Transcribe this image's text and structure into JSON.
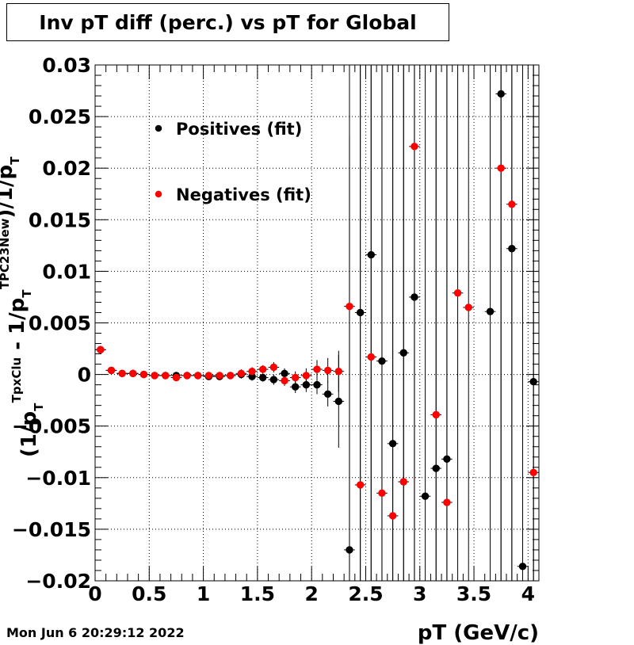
{
  "title": "Inv pT diff (perc.) vs pT for Global",
  "timestamp": "Mon Jun  6 20:29:12 2022",
  "chart_data": {
    "type": "scatter",
    "xlabel": "pT (GeV/c)",
    "ylabel_parts": [
      "(1/p",
      "T",
      "TpxClu",
      " - 1/p",
      "T",
      "TPC23New",
      ")/1/p",
      "T",
      "TPC23New"
    ],
    "xlim": [
      0,
      4.1
    ],
    "ylim": [
      -0.02,
      0.03
    ],
    "grid": true,
    "legend_placement": "top-left",
    "x_ticks": [
      0,
      0.5,
      1,
      1.5,
      2,
      2.5,
      3,
      3.5,
      4
    ],
    "x_tick_labels": [
      "0",
      "0.5",
      "1",
      "1.5",
      "2",
      "2.5",
      "3",
      "3.5",
      "4"
    ],
    "y_ticks": [
      -0.02,
      -0.015,
      -0.01,
      -0.005,
      0,
      0.005,
      0.01,
      0.015,
      0.02,
      0.025,
      0.03
    ],
    "y_tick_labels": [
      "−0.02",
      "−0.015",
      "−0.01",
      "−0.005",
      "0",
      "0.005",
      "0.01",
      "0.015",
      "0.02",
      "0.025",
      "0.03"
    ],
    "series": [
      {
        "name": "Positives (fit)",
        "color": "#000000",
        "points": [
          {
            "x": 0.05,
            "y": 0.0024,
            "e": 0.0002
          },
          {
            "x": 0.15,
            "y": 0.0004,
            "e": 0.0002
          },
          {
            "x": 0.25,
            "y": 0.0001,
            "e": 0.0002
          },
          {
            "x": 0.35,
            "y": 0.0001,
            "e": 0.0002
          },
          {
            "x": 0.45,
            "y": 0.0,
            "e": 0.0002
          },
          {
            "x": 0.55,
            "y": -0.0001,
            "e": 0.0002
          },
          {
            "x": 0.65,
            "y": -0.0001,
            "e": 0.0002
          },
          {
            "x": 0.75,
            "y": -0.0001,
            "e": 0.0002
          },
          {
            "x": 0.85,
            "y": -0.0001,
            "e": 0.0002
          },
          {
            "x": 0.95,
            "y": -0.0001,
            "e": 0.0002
          },
          {
            "x": 1.05,
            "y": -0.0002,
            "e": 0.0003
          },
          {
            "x": 1.15,
            "y": -0.0002,
            "e": 0.0003
          },
          {
            "x": 1.25,
            "y": -0.0001,
            "e": 0.0003
          },
          {
            "x": 1.35,
            "y": 0.0,
            "e": 0.0004
          },
          {
            "x": 1.45,
            "y": -0.0002,
            "e": 0.0004
          },
          {
            "x": 1.55,
            "y": -0.0003,
            "e": 0.0004
          },
          {
            "x": 1.65,
            "y": -0.0005,
            "e": 0.0005
          },
          {
            "x": 1.75,
            "y": 0.0001,
            "e": 0.0005
          },
          {
            "x": 1.85,
            "y": -0.0012,
            "e": 0.0006
          },
          {
            "x": 1.95,
            "y": -0.001,
            "e": 0.0007
          },
          {
            "x": 2.05,
            "y": -0.001,
            "e": 0.0009
          },
          {
            "x": 2.15,
            "y": -0.0019,
            "e": 0.0012
          },
          {
            "x": 2.25,
            "y": -0.0026,
            "e": 0.0045
          },
          {
            "x": 2.35,
            "y": -0.017,
            "e": 0.04
          },
          {
            "x": 2.45,
            "y": 0.006,
            "e": 0.06
          },
          {
            "x": 2.55,
            "y": 0.0116,
            "e": 0.06
          },
          {
            "x": 2.65,
            "y": 0.0013,
            "e": 0.06
          },
          {
            "x": 2.75,
            "y": -0.0067,
            "e": 0.06
          },
          {
            "x": 2.85,
            "y": 0.0021,
            "e": 0.06
          },
          {
            "x": 2.95,
            "y": 0.0075,
            "e": 0.06
          },
          {
            "x": 3.05,
            "y": -0.0118,
            "e": 0.06
          },
          {
            "x": 3.15,
            "y": -0.0091,
            "e": 0.06
          },
          {
            "x": 3.25,
            "y": -0.0082,
            "e": 0.06
          },
          {
            "x": 3.65,
            "y": 0.0061,
            "e": 0.06
          },
          {
            "x": 3.75,
            "y": 0.0272,
            "e": 0.06
          },
          {
            "x": 3.85,
            "y": 0.0122,
            "e": 0.06
          },
          {
            "x": 3.95,
            "y": -0.0186,
            "e": 0.06
          },
          {
            "x": 4.05,
            "y": -0.0007,
            "e": 0.06
          }
        ]
      },
      {
        "name": "Negatives (fit)",
        "color": "#ff0000",
        "points": [
          {
            "x": 0.05,
            "y": 0.0024,
            "e": 0.0002
          },
          {
            "x": 0.15,
            "y": 0.0004,
            "e": 0.0002
          },
          {
            "x": 0.25,
            "y": 0.0001,
            "e": 0.0002
          },
          {
            "x": 0.35,
            "y": 0.0001,
            "e": 0.0002
          },
          {
            "x": 0.45,
            "y": 0.0,
            "e": 0.0002
          },
          {
            "x": 0.55,
            "y": -0.0001,
            "e": 0.0002
          },
          {
            "x": 0.65,
            "y": -0.0001,
            "e": 0.0002
          },
          {
            "x": 0.75,
            "y": -0.0003,
            "e": 0.0002
          },
          {
            "x": 0.85,
            "y": -0.0001,
            "e": 0.0002
          },
          {
            "x": 0.95,
            "y": -0.0001,
            "e": 0.0002
          },
          {
            "x": 1.05,
            "y": -0.0001,
            "e": 0.0003
          },
          {
            "x": 1.15,
            "y": -0.0001,
            "e": 0.0003
          },
          {
            "x": 1.25,
            "y": -0.0001,
            "e": 0.0003
          },
          {
            "x": 1.35,
            "y": 0.0001,
            "e": 0.0004
          },
          {
            "x": 1.45,
            "y": 0.0003,
            "e": 0.0004
          },
          {
            "x": 1.55,
            "y": 0.0005,
            "e": 0.0004
          },
          {
            "x": 1.65,
            "y": 0.0007,
            "e": 0.0005
          },
          {
            "x": 1.75,
            "y": -0.0006,
            "e": 0.0005
          },
          {
            "x": 1.85,
            "y": -0.0003,
            "e": 0.0006
          },
          {
            "x": 1.95,
            "y": -0.0001,
            "e": 0.0007
          },
          {
            "x": 2.05,
            "y": 0.0005,
            "e": 0.0009
          },
          {
            "x": 2.15,
            "y": 0.0004,
            "e": 0.0012
          },
          {
            "x": 2.25,
            "y": 0.0003,
            "e": 0.002
          },
          {
            "x": 2.35,
            "y": 0.0066,
            "e": 0.06
          },
          {
            "x": 2.45,
            "y": -0.0107,
            "e": 0.06
          },
          {
            "x": 2.55,
            "y": 0.0017,
            "e": 0.06
          },
          {
            "x": 2.65,
            "y": -0.0115,
            "e": 0.06
          },
          {
            "x": 2.75,
            "y": -0.0137,
            "e": 0.06
          },
          {
            "x": 2.85,
            "y": -0.0104,
            "e": 0.06
          },
          {
            "x": 2.95,
            "y": 0.0221,
            "e": 0.06
          },
          {
            "x": 3.15,
            "y": -0.0039,
            "e": 0.06
          },
          {
            "x": 3.25,
            "y": -0.0124,
            "e": 0.06
          },
          {
            "x": 3.35,
            "y": 0.0079,
            "e": 0.06
          },
          {
            "x": 3.45,
            "y": 0.0065,
            "e": 0.06
          },
          {
            "x": 3.75,
            "y": 0.02,
            "e": 0.06
          },
          {
            "x": 3.85,
            "y": 0.0165,
            "e": 0.06
          },
          {
            "x": 4.05,
            "y": -0.0095,
            "e": 0.06
          }
        ]
      }
    ]
  }
}
